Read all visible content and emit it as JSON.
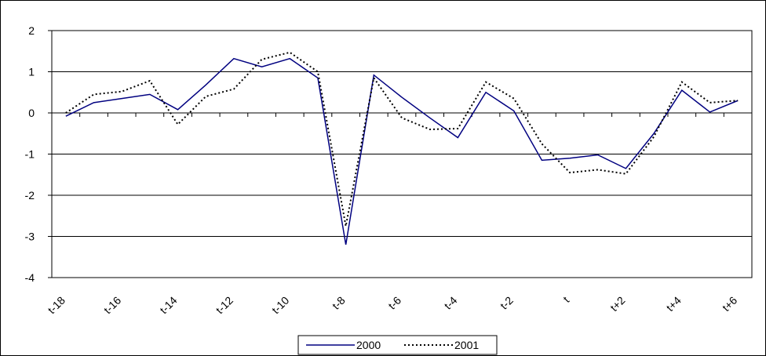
{
  "chart_data": {
    "type": "line",
    "categories": [
      "t-18",
      null,
      "t-16",
      null,
      "t-14",
      null,
      "t-12",
      null,
      "t-10",
      null,
      "t-8",
      null,
      "t-6",
      null,
      "t-4",
      null,
      "t-2",
      null,
      "t",
      null,
      "t+2",
      null,
      "t+4",
      null,
      "t+6"
    ],
    "series": [
      {
        "name": "2000",
        "color": "#000080",
        "dash": false,
        "values": [
          -0.08,
          0.25,
          0.35,
          0.45,
          0.08,
          0.68,
          1.32,
          1.12,
          1.32,
          0.85,
          -3.2,
          0.92,
          0.38,
          -0.12,
          -0.6,
          0.5,
          0.05,
          -1.15,
          -1.1,
          -1.02,
          -1.35,
          -0.5,
          0.55,
          0.02,
          0.3
        ]
      },
      {
        "name": "2001",
        "color": "#000000",
        "dash": true,
        "values": [
          0.0,
          0.45,
          0.52,
          0.78,
          -0.28,
          0.4,
          0.58,
          1.3,
          1.47,
          1.0,
          -2.75,
          0.85,
          -0.12,
          -0.4,
          -0.38,
          0.75,
          0.35,
          -0.75,
          -1.45,
          -1.38,
          -1.48,
          -0.58,
          0.75,
          0.25,
          0.3
        ]
      }
    ],
    "ylim": [
      -4,
      2
    ],
    "yticks": [
      -4,
      -3,
      -2,
      -1,
      0,
      1,
      2
    ],
    "grid": true,
    "legend": "bottom"
  }
}
